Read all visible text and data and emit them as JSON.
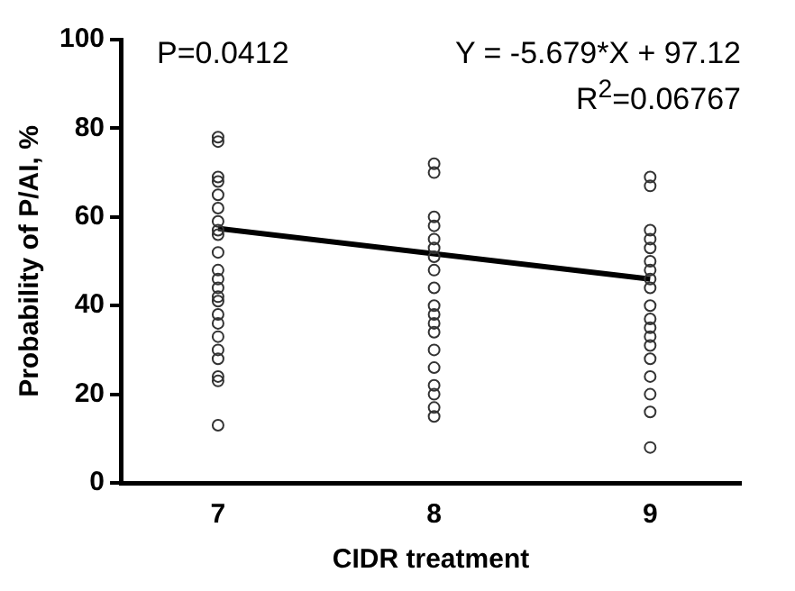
{
  "chart_data": {
    "type": "scatter",
    "xlabel": "CIDR treatment",
    "ylabel": "Probability of P/AI, %",
    "annotations": [
      "P=0.0412",
      "Y = -5.679*X + 97.12",
      "R$^{2}$=0.06767"
    ],
    "xlim": [
      6.55,
      9.42
    ],
    "xticks": [
      7,
      8,
      9
    ],
    "ylim": [
      0,
      100
    ],
    "yticks": [
      0,
      20,
      40,
      60,
      80,
      100
    ],
    "grid": false,
    "legend": false,
    "marker": "circle",
    "series": [
      {
        "color": "#333333",
        "x": [
          7,
          7,
          7,
          7,
          7,
          7,
          7,
          7,
          7,
          7,
          7,
          7,
          7,
          7,
          7,
          7,
          7,
          7,
          7,
          7,
          7,
          7,
          7,
          8,
          8,
          8,
          8,
          8,
          8,
          8,
          8,
          8,
          8,
          8,
          8,
          8,
          8,
          8,
          8,
          8,
          8,
          8,
          9,
          9,
          9,
          9,
          9,
          9,
          9,
          9,
          9,
          9,
          9,
          9,
          9,
          9,
          9,
          9,
          9,
          9,
          9
        ],
        "values": [
          78,
          77,
          69,
          68,
          65,
          62,
          59,
          57,
          56,
          52,
          48,
          46,
          44,
          42,
          41,
          38,
          36,
          33,
          30,
          28,
          24,
          23,
          13,
          72,
          70,
          60,
          58,
          55,
          53,
          51,
          48,
          44,
          40,
          38,
          36,
          34,
          30,
          26,
          22,
          20,
          17,
          15,
          69,
          67,
          57,
          55,
          53,
          50,
          48,
          46,
          44,
          40,
          37,
          35,
          33,
          31,
          28,
          24,
          20,
          16,
          8
        ]
      },
      {
        "type": "line",
        "color": "#000000",
        "line_style": "solid",
        "marker": "none",
        "x": [
          7,
          9
        ],
        "values": [
          57.4,
          46.0
        ]
      }
    ]
  }
}
